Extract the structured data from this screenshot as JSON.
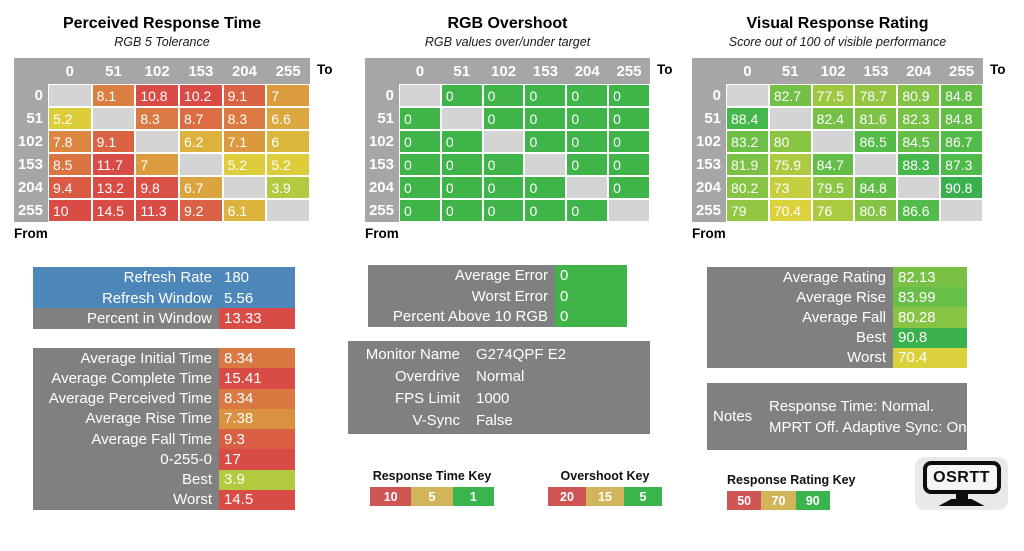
{
  "colors": {
    "accent_blue": "#4d86b8",
    "label_gray": "#808080",
    "table_header_gray": "#a6a6a6",
    "blank_cell_gray": "#d4d4d4",
    "scale_red": "#d94b45",
    "scale_yellow": "#ddd23b",
    "scale_green": "#3fb549"
  },
  "scales": {
    "time": [
      [
        1,
        "#3fb549"
      ],
      [
        5,
        "#ddd23b"
      ],
      [
        10,
        "#d94b45"
      ]
    ],
    "overshoot": [
      [
        5,
        "#3fb549"
      ],
      [
        15,
        "#ddd23b"
      ],
      [
        20,
        "#d94b45"
      ]
    ],
    "rating": [
      [
        50,
        "#d94b45"
      ],
      [
        70,
        "#ddd23b"
      ],
      [
        88,
        "#47b94a"
      ],
      [
        95,
        "#2aa257"
      ]
    ]
  },
  "chart_data": [
    {
      "type": "heatmap",
      "title": "Perceived Response Time",
      "subtitle": "RGB 5 Tolerance",
      "scale": "time",
      "to_label": "To",
      "from_label": "From",
      "cols": [
        "0",
        "51",
        "102",
        "153",
        "204",
        "255"
      ],
      "rows": [
        "0",
        "51",
        "102",
        "153",
        "204",
        "255"
      ],
      "values": [
        [
          null,
          8.1,
          10.8,
          10.2,
          9.1,
          7
        ],
        [
          5.2,
          null,
          8.3,
          8.7,
          8.3,
          6.6
        ],
        [
          7.8,
          9.1,
          null,
          6.2,
          7.1,
          6
        ],
        [
          8.5,
          11.7,
          7,
          null,
          5.2,
          5.2
        ],
        [
          9.4,
          13.2,
          9.8,
          6.7,
          null,
          3.9
        ],
        [
          10,
          14.5,
          11.3,
          9.2,
          6.1,
          null
        ]
      ]
    },
    {
      "type": "heatmap",
      "title": "RGB Overshoot",
      "subtitle": "RGB values over/under target",
      "scale": "overshoot",
      "to_label": "To",
      "from_label": "From",
      "cols": [
        "0",
        "51",
        "102",
        "153",
        "204",
        "255"
      ],
      "rows": [
        "0",
        "51",
        "102",
        "153",
        "204",
        "255"
      ],
      "values": [
        [
          null,
          0,
          0,
          0,
          0,
          0
        ],
        [
          0,
          null,
          0,
          0,
          0,
          0
        ],
        [
          0,
          0,
          null,
          0,
          0,
          0
        ],
        [
          0,
          0,
          0,
          null,
          0,
          0
        ],
        [
          0,
          0,
          0,
          0,
          null,
          0
        ],
        [
          0,
          0,
          0,
          0,
          0,
          null
        ]
      ]
    },
    {
      "type": "heatmap",
      "title": "Visual Response Rating",
      "subtitle": "Score out of 100 of visible performance",
      "scale": "rating",
      "to_label": "To",
      "from_label": "From",
      "cols": [
        "0",
        "51",
        "102",
        "153",
        "204",
        "255"
      ],
      "rows": [
        "0",
        "51",
        "102",
        "153",
        "204",
        "255"
      ],
      "values": [
        [
          null,
          82.7,
          77.5,
          78.7,
          80.9,
          84.8
        ],
        [
          88.4,
          null,
          82.4,
          81.6,
          82.3,
          84.8
        ],
        [
          83.2,
          80,
          null,
          86.5,
          84.5,
          86.7
        ],
        [
          81.9,
          75.9,
          84.7,
          null,
          88.3,
          87.3
        ],
        [
          80.2,
          73,
          79.5,
          84.8,
          null,
          90.8
        ],
        [
          79,
          70.4,
          76,
          80.6,
          86.6,
          null
        ]
      ]
    }
  ],
  "stat_boxes": {
    "refresh": {
      "rows": [
        {
          "label": "Refresh Rate",
          "value": 180,
          "style": "blue"
        },
        {
          "label": "Refresh Window",
          "value": 5.56,
          "style": "blue"
        },
        {
          "label": "Percent in Window",
          "value": 13.33,
          "scale": "time"
        }
      ]
    },
    "times": {
      "rows": [
        {
          "label": "Average Initial Time",
          "value": 8.34,
          "scale": "time"
        },
        {
          "label": "Average Complete Time",
          "value": 15.41,
          "scale": "time"
        },
        {
          "label": "Average Perceived Time",
          "value": 8.34,
          "scale": "time"
        },
        {
          "label": "Average Rise Time",
          "value": 7.38,
          "scale": "time"
        },
        {
          "label": "Average Fall Time",
          "value": 9.3,
          "scale": "time"
        },
        {
          "label": "0-255-0",
          "value": 17,
          "scale": "time"
        },
        {
          "label": "Best",
          "value": 3.9,
          "scale": "time"
        },
        {
          "label": "Worst",
          "value": 14.5,
          "scale": "time"
        }
      ]
    },
    "error": {
      "rows": [
        {
          "label": "Average Error",
          "value": 0,
          "scale": "overshoot"
        },
        {
          "label": "Worst Error",
          "value": 0,
          "scale": "overshoot"
        },
        {
          "label": "Percent Above 10 RGB",
          "value": 0,
          "scale": "overshoot"
        }
      ]
    },
    "monitor": {
      "rows": [
        {
          "label": "Monitor Name",
          "value": "G274QPF E2"
        },
        {
          "label": "Overdrive",
          "value": "Normal"
        },
        {
          "label": "FPS Limit",
          "value": "1000"
        },
        {
          "label": "V-Sync",
          "value": "False"
        }
      ]
    },
    "rating": {
      "rows": [
        {
          "label": "Average Rating",
          "value": 82.13,
          "scale": "rating"
        },
        {
          "label": "Average Rise",
          "value": 83.99,
          "scale": "rating"
        },
        {
          "label": "Average Fall",
          "value": 80.28,
          "scale": "rating"
        },
        {
          "label": "Best",
          "value": 90.8,
          "scale": "rating"
        },
        {
          "label": "Worst",
          "value": 70.4,
          "scale": "rating"
        }
      ]
    },
    "notes": {
      "label": "Notes",
      "text": "Response Time: Normal. MPRT Off. Adaptive Sync: On"
    }
  },
  "keys": [
    {
      "title": "Response Time Key",
      "segments": [
        {
          "label": "10",
          "color": "#cf5454"
        },
        {
          "label": "5",
          "color": "#d2b55a"
        },
        {
          "label": "1",
          "color": "#3ab54e"
        }
      ]
    },
    {
      "title": "Overshoot Key",
      "segments": [
        {
          "label": "20",
          "color": "#cf5454"
        },
        {
          "label": "15",
          "color": "#d2b55a"
        },
        {
          "label": "5",
          "color": "#3ab54e"
        }
      ]
    },
    {
      "title": "Response Rating Key",
      "segments": [
        {
          "label": "50",
          "color": "#cf5454"
        },
        {
          "label": "70",
          "color": "#d2b55a"
        },
        {
          "label": "90",
          "color": "#3ab54e"
        }
      ]
    }
  ],
  "logo": {
    "text": "OSRTT"
  }
}
